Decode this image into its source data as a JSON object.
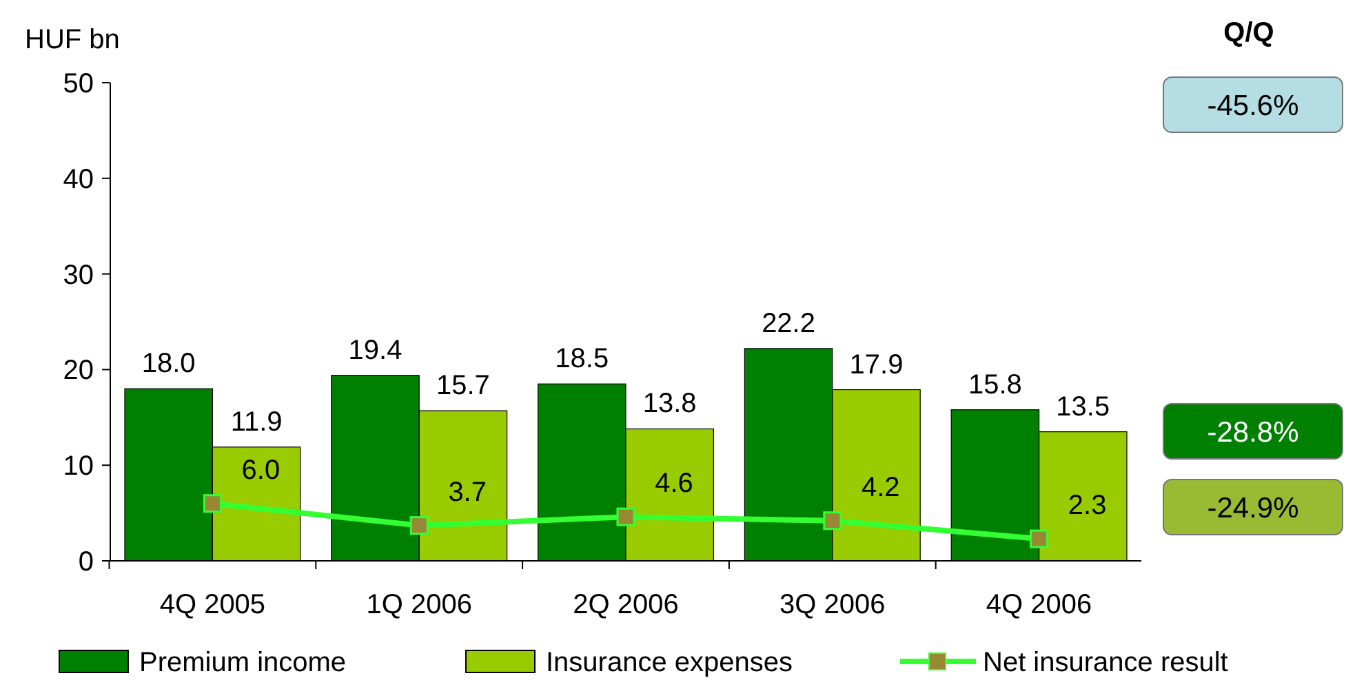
{
  "chart_data": {
    "type": "bar",
    "ylabel": "HUF bn",
    "categories": [
      "4Q 2005",
      "1Q 2006",
      "2Q 2006",
      "3Q 2006",
      "4Q 2006"
    ],
    "series": [
      {
        "name": "Premium income",
        "color": "#008000",
        "values": [
          18.0,
          19.4,
          18.5,
          22.2,
          15.8
        ],
        "value_labels": [
          "18.0",
          "19.4",
          "18.5",
          "22.2",
          "15.8"
        ]
      },
      {
        "name": "Insurance expenses",
        "color": "#99cc00",
        "values": [
          11.9,
          15.7,
          13.8,
          17.9,
          13.5
        ],
        "value_labels": [
          "11.9",
          "15.7",
          "13.8",
          "17.9",
          "13.5"
        ]
      },
      {
        "name": "Net insurance result",
        "type": "line",
        "color": "#33ff33",
        "marker": "square",
        "values": [
          6.0,
          3.7,
          4.6,
          4.2,
          2.3
        ],
        "value_labels": [
          "6.0",
          "3.7",
          "4.6",
          "4.2",
          "2.3"
        ]
      }
    ],
    "ylim": [
      0,
      50
    ],
    "yticks": [
      0,
      10,
      20,
      30,
      40,
      50
    ],
    "legend": "bottom",
    "grid": false,
    "annotations": [
      "Q/Q",
      "-45.6%",
      "-28.8%",
      "-24.9%"
    ]
  }
}
